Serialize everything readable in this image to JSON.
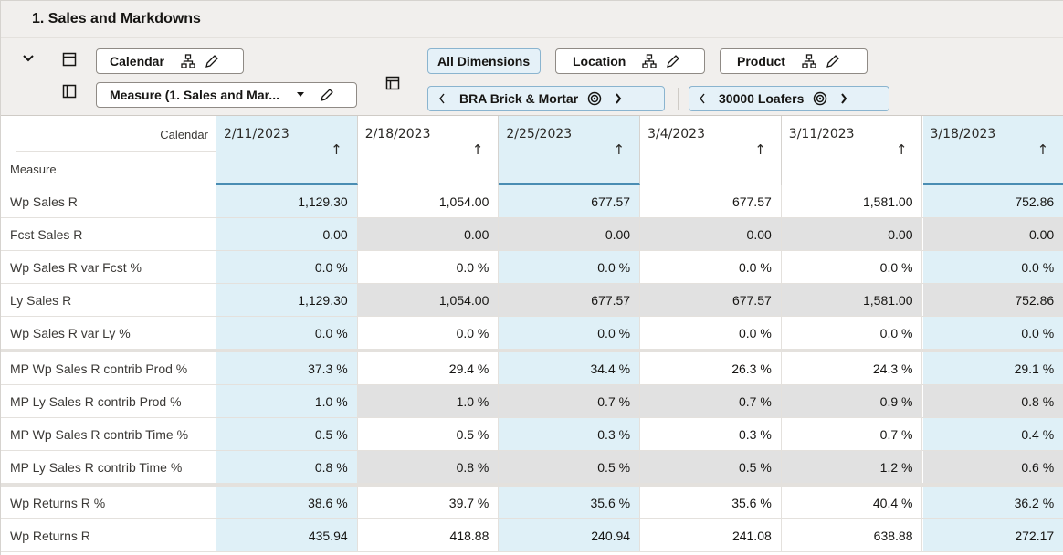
{
  "view": {
    "title": "1. Sales and Markdowns",
    "toolbar": {
      "calendar_label": "Calendar",
      "measure_label": "Measure (1. Sales and Mar...",
      "all_dimensions_label": "All Dimensions",
      "location_label": "Location",
      "product_label": "Product",
      "location_value": "BRA Brick & Mortar",
      "product_value": "30000 Loafers"
    },
    "grid": {
      "corner_calendar": "Calendar",
      "corner_measure": "Measure",
      "columns": [
        {
          "date": "2/11/2023",
          "arrow": "↑",
          "selected": true
        },
        {
          "date": "2/18/2023",
          "arrow": "↑",
          "selected": false
        },
        {
          "date": "2/25/2023",
          "arrow": "↑",
          "selected": true
        },
        {
          "date": "3/4/2023",
          "arrow": "↑",
          "selected": false
        },
        {
          "date": "3/11/2023",
          "arrow": "↑",
          "selected": false
        },
        {
          "date": "3/18/2023",
          "arrow": "↑",
          "selected": true
        }
      ],
      "rows": [
        {
          "label": "Wp Sales R",
          "values": [
            "1,129.30",
            "1,054.00",
            "677.57",
            "677.57",
            "1,581.00",
            "752.86"
          ],
          "readonly": false,
          "group_start": false
        },
        {
          "label": "Fcst Sales R",
          "values": [
            "0.00",
            "0.00",
            "0.00",
            "0.00",
            "0.00",
            "0.00"
          ],
          "readonly": true,
          "group_start": false
        },
        {
          "label": "Wp Sales R var Fcst %",
          "values": [
            "0.0 %",
            "0.0 %",
            "0.0 %",
            "0.0 %",
            "0.0 %",
            "0.0 %"
          ],
          "readonly": false,
          "group_start": false
        },
        {
          "label": "Ly Sales R",
          "values": [
            "1,129.30",
            "1,054.00",
            "677.57",
            "677.57",
            "1,581.00",
            "752.86"
          ],
          "readonly": true,
          "group_start": false
        },
        {
          "label": "Wp Sales R var Ly %",
          "values": [
            "0.0 %",
            "0.0 %",
            "0.0 %",
            "0.0 %",
            "0.0 %",
            "0.0 %"
          ],
          "readonly": false,
          "group_start": false
        },
        {
          "label": "MP Wp Sales R contrib Prod %",
          "values": [
            "37.3 %",
            "29.4 %",
            "34.4 %",
            "26.3 %",
            "24.3 %",
            "29.1 %"
          ],
          "readonly": false,
          "group_start": true
        },
        {
          "label": "MP Ly Sales R contrib Prod %",
          "values": [
            "1.0 %",
            "1.0 %",
            "0.7 %",
            "0.7 %",
            "0.9 %",
            "0.8 %"
          ],
          "readonly": true,
          "group_start": false
        },
        {
          "label": "MP Wp Sales R contrib Time %",
          "values": [
            "0.5 %",
            "0.5 %",
            "0.3 %",
            "0.3 %",
            "0.7 %",
            "0.4 %"
          ],
          "readonly": false,
          "group_start": false
        },
        {
          "label": "MP Ly Sales R contrib Time %",
          "values": [
            "0.8 %",
            "0.8 %",
            "0.5 %",
            "0.5 %",
            "1.2 %",
            "0.6 %"
          ],
          "readonly": true,
          "group_start": false
        },
        {
          "label": "Wp Returns R %",
          "values": [
            "38.6 %",
            "39.7 %",
            "35.6 %",
            "35.6 %",
            "40.4 %",
            "36.2 %"
          ],
          "readonly": false,
          "group_start": true
        },
        {
          "label": "Wp Returns R",
          "values": [
            "435.94",
            "418.88",
            "240.94",
            "241.08",
            "638.88",
            "272.17"
          ],
          "readonly": false,
          "group_start": false
        }
      ]
    },
    "colors": {
      "selected_column": "#dff0f7",
      "readonly_cell": "#e1e1e1",
      "header_bg": "#f1efed",
      "accent": "#4a8db3"
    },
    "icons": {
      "collapse": "chevron-down-icon",
      "layout_rows": "row-layout-icon",
      "layout_cols": "column-layout-icon",
      "hierarchy": "hierarchy-icon",
      "edit": "pencil-icon",
      "pivot": "pivot-layout-icon",
      "target": "target-icon",
      "prev": "chevron-left-icon",
      "next": "chevron-right-icon"
    }
  }
}
